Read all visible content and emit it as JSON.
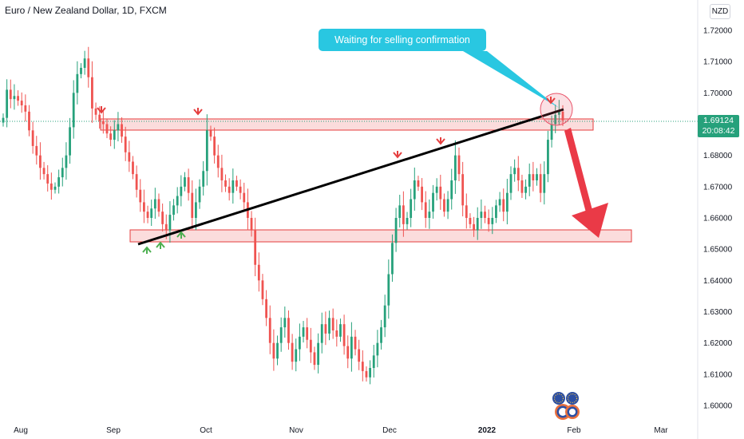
{
  "header": {
    "title": "Euro / New Zealand Dollar, 1D, FXCM",
    "currency_button": "NZD"
  },
  "annotation": {
    "callout_text": "Waiting for selling confirmation"
  },
  "price_tag": {
    "price": "1.69124",
    "countdown": "20:08:42",
    "color": "#26a17b"
  },
  "colors": {
    "up_candle": "#26a17b",
    "down_candle": "#ef5350",
    "zone_fill": "#fbdcdc",
    "zone_border": "#e53e3e",
    "callout": "#29c7e1",
    "arrow": "#ea3a47",
    "trendline": "#000000"
  },
  "chart_data": {
    "type": "candlestick",
    "symbol": "EURNZD",
    "interval": "1D",
    "source": "FXCM",
    "title": "Euro / New Zealand Dollar, 1D, FXCM",
    "y_axis": {
      "min": 1.595,
      "max": 1.725,
      "ticks": [
        "1.72000",
        "1.71000",
        "1.70000",
        "1.69000",
        "1.68000",
        "1.67000",
        "1.66000",
        "1.65000",
        "1.64000",
        "1.63000",
        "1.62000",
        "1.61000",
        "1.60000"
      ]
    },
    "x_axis": {
      "ticks": [
        "Aug",
        "Sep",
        "Oct",
        "Nov",
        "Dec",
        "2022",
        "Feb",
        "Mar"
      ],
      "bold_ticks": [
        "2022"
      ]
    },
    "closes": [
      1.692,
      1.701,
      1.698,
      1.699,
      1.6975,
      1.696,
      1.694,
      1.688,
      1.683,
      1.68,
      1.676,
      1.674,
      1.671,
      1.669,
      1.67,
      1.673,
      1.676,
      1.68,
      1.689,
      1.7,
      1.706,
      1.708,
      1.711,
      1.705,
      1.695,
      1.693,
      1.691,
      1.69,
      1.687,
      1.685,
      1.688,
      1.69,
      1.686,
      1.681,
      1.678,
      1.674,
      1.669,
      1.665,
      1.662,
      1.66,
      1.663,
      1.666,
      1.662,
      1.658,
      1.656,
      1.661,
      1.664,
      1.667,
      1.67,
      1.673,
      1.668,
      1.66,
      1.665,
      1.67,
      1.675,
      1.688,
      1.686,
      1.68,
      1.676,
      1.672,
      1.67,
      1.668,
      1.672,
      1.67,
      1.668,
      1.665,
      1.66,
      1.656,
      1.645,
      1.64,
      1.634,
      1.628,
      1.62,
      1.615,
      1.62,
      1.625,
      1.628,
      1.62,
      1.614,
      1.618,
      1.622,
      1.625,
      1.621,
      1.617,
      1.613,
      1.62,
      1.626,
      1.623,
      1.628,
      1.624,
      1.622,
      1.626,
      1.619,
      1.615,
      1.622,
      1.618,
      1.614,
      1.611,
      1.609,
      1.612,
      1.616,
      1.62,
      1.625,
      1.632,
      1.642,
      1.652,
      1.66,
      1.664,
      1.658,
      1.66,
      1.666,
      1.672,
      1.67,
      1.665,
      1.66,
      1.662,
      1.668,
      1.67,
      1.666,
      1.662,
      1.666,
      1.672,
      1.68,
      1.674,
      1.664,
      1.66,
      1.658,
      1.656,
      1.66,
      1.662,
      1.66,
      1.658,
      1.66,
      1.664,
      1.666,
      1.662,
      1.668,
      1.674,
      1.676,
      1.672,
      1.668,
      1.67,
      1.674,
      1.672,
      1.674,
      1.668,
      1.674,
      1.685,
      1.69,
      1.693,
      1.694,
      1.6912
    ]
  }
}
